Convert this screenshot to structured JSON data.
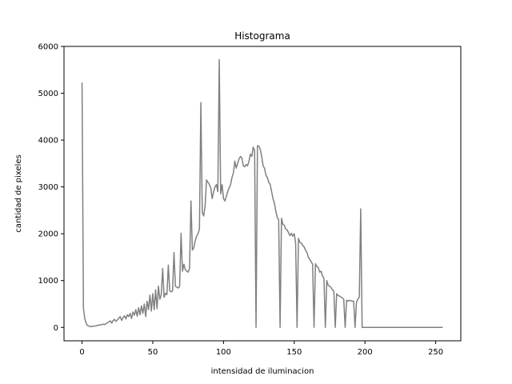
{
  "chart_data": {
    "type": "line",
    "title": "Histograma",
    "xlabel": "intensidad de iluminacion",
    "ylabel": "cantidad de pixeles",
    "xlim": [
      -12.75,
      267.75
    ],
    "ylim": [
      -286,
      6000
    ],
    "xticks": [
      0,
      50,
      100,
      150,
      200,
      250
    ],
    "yticks": [
      0,
      1000,
      2000,
      3000,
      4000,
      5000,
      6000
    ],
    "grid": false,
    "series": [
      {
        "color": "#808080",
        "x": [
          0,
          1,
          2,
          3,
          4,
          5,
          6,
          7,
          8,
          9,
          10,
          11,
          12,
          13,
          14,
          15,
          16,
          17,
          18,
          19,
          20,
          21,
          22,
          23,
          24,
          25,
          26,
          27,
          28,
          29,
          30,
          31,
          32,
          33,
          34,
          35,
          36,
          37,
          38,
          39,
          40,
          41,
          42,
          43,
          44,
          45,
          46,
          47,
          48,
          49,
          50,
          51,
          52,
          53,
          54,
          55,
          56,
          57,
          58,
          59,
          60,
          61,
          62,
          63,
          64,
          65,
          66,
          67,
          68,
          69,
          70,
          71,
          72,
          73,
          74,
          75,
          76,
          77,
          78,
          79,
          80,
          81,
          82,
          83,
          84,
          85,
          86,
          87,
          88,
          89,
          90,
          91,
          92,
          93,
          94,
          95,
          96,
          97,
          98,
          99,
          100,
          101,
          102,
          103,
          104,
          105,
          106,
          107,
          108,
          109,
          110,
          111,
          112,
          113,
          114,
          115,
          116,
          117,
          118,
          119,
          120,
          121,
          122,
          123,
          124,
          125,
          126,
          127,
          128,
          129,
          130,
          131,
          132,
          133,
          134,
          135,
          136,
          137,
          138,
          139,
          140,
          141,
          142,
          143,
          144,
          145,
          146,
          147,
          148,
          149,
          150,
          151,
          152,
          153,
          154,
          155,
          156,
          157,
          158,
          159,
          160,
          161,
          162,
          163,
          164,
          165,
          166,
          167,
          168,
          169,
          170,
          171,
          172,
          173,
          174,
          175,
          176,
          177,
          178,
          179,
          180,
          181,
          182,
          183,
          184,
          185,
          186,
          187,
          188,
          189,
          190,
          191,
          192,
          193,
          194,
          195,
          196,
          197,
          198,
          199,
          200,
          201,
          202,
          203,
          204,
          205,
          206,
          207,
          208,
          209,
          210,
          211,
          212,
          213,
          214,
          215,
          216,
          217,
          218,
          219,
          220,
          221,
          222,
          223,
          224,
          225,
          226,
          227,
          228,
          229,
          230,
          231,
          232,
          233,
          234,
          235,
          236,
          237,
          238,
          239,
          240,
          241,
          242,
          243,
          244,
          245,
          246,
          247,
          248,
          249,
          250,
          251,
          252,
          253,
          254,
          255
        ],
        "y": [
          5230,
          400,
          180,
          80,
          40,
          25,
          20,
          20,
          25,
          30,
          35,
          45,
          50,
          55,
          60,
          70,
          60,
          80,
          100,
          120,
          140,
          90,
          150,
          170,
          130,
          160,
          200,
          230,
          150,
          210,
          250,
          180,
          270,
          230,
          300,
          190,
          330,
          260,
          380,
          240,
          420,
          270,
          460,
          300,
          500,
          230,
          560,
          380,
          690,
          350,
          720,
          380,
          800,
          400,
          880,
          600,
          700,
          1260,
          640,
          730,
          700,
          1330,
          780,
          760,
          780,
          1600,
          880,
          860,
          840,
          880,
          2010,
          1200,
          1350,
          1230,
          1200,
          1180,
          1260,
          2700,
          1650,
          1700,
          1850,
          1950,
          2000,
          2100,
          4800,
          2450,
          2380,
          2600,
          3150,
          3100,
          3050,
          2980,
          2750,
          2900,
          3000,
          3050,
          2900,
          5720,
          2850,
          3050,
          2750,
          2700,
          2800,
          2900,
          2980,
          3050,
          3200,
          3300,
          3550,
          3400,
          3500,
          3600,
          3650,
          3620,
          3450,
          3430,
          3480,
          3450,
          3550,
          3700,
          3650,
          3850,
          3780,
          0,
          3880,
          3870,
          3800,
          3650,
          3450,
          3400,
          3250,
          3200,
          3100,
          3050,
          2900,
          2750,
          2650,
          2480,
          2350,
          2300,
          0,
          2330,
          2200,
          2180,
          2100,
          2080,
          2020,
          1960,
          2010,
          1950,
          2000,
          1800,
          0,
          1900,
          1820,
          1800,
          1750,
          1720,
          1650,
          1600,
          1500,
          1450,
          1400,
          1350,
          0,
          1360,
          1300,
          1280,
          1180,
          1200,
          1100,
          1050,
          0,
          1000,
          900,
          880,
          850,
          800,
          780,
          0,
          720,
          680,
          670,
          650,
          630,
          600,
          0,
          580,
          560,
          580,
          570,
          560,
          560,
          0,
          540,
          600,
          650,
          2530,
          0,
          0,
          0,
          0,
          0,
          0,
          0,
          0,
          0,
          0,
          0,
          0,
          0,
          0,
          0,
          0,
          0,
          0,
          0,
          0,
          0,
          0,
          0,
          0,
          0,
          0,
          0,
          0,
          0,
          0,
          0,
          0,
          0,
          0,
          0,
          0,
          0,
          0,
          0,
          0,
          0,
          0,
          0,
          0,
          0,
          0,
          0,
          0,
          0,
          0,
          0,
          0,
          0,
          0,
          0,
          0,
          0,
          0
        ]
      }
    ]
  }
}
